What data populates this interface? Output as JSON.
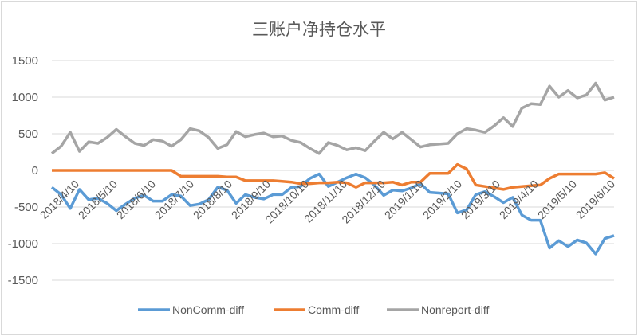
{
  "chart_data": {
    "type": "line",
    "title": "三账户净持仓水平",
    "xlabel": "",
    "ylabel": "",
    "ylim": [
      -1500,
      1500
    ],
    "yticks": [
      1500,
      1000,
      500,
      0,
      -500,
      -1000,
      -1500
    ],
    "xtick_labels": [
      "2018/4/10",
      "2018/5/10",
      "2018/6/10",
      "2018/7/10",
      "2018/8/10",
      "2018/9/10",
      "2018/10/10",
      "2018/11/10",
      "2018/12/10",
      "2019/1/10",
      "2019/2/10",
      "2019/3/10",
      "2019/4/10",
      "2019/5/10",
      "2019/6/10"
    ],
    "x_start": "2018/4/10",
    "x_frequency": "weekly",
    "grid": true,
    "legend_position": "bottom",
    "series": [
      {
        "name": "NonComm-diff",
        "color": "#5b9bd5",
        "values": [
          -230,
          -330,
          -520,
          -260,
          -400,
          -380,
          -450,
          -550,
          -460,
          -380,
          -340,
          -420,
          -420,
          -330,
          -350,
          -480,
          -460,
          -400,
          -230,
          -270,
          -450,
          -330,
          -370,
          -390,
          -330,
          -330,
          -230,
          -220,
          -110,
          -50,
          -220,
          -160,
          -100,
          -50,
          -100,
          -200,
          -340,
          -270,
          -280,
          -240,
          -180,
          -300,
          -310,
          -320,
          -580,
          -540,
          -330,
          -290,
          -360,
          -440,
          -370,
          -610,
          -680,
          -680,
          -1060,
          -960,
          -1040,
          -950,
          -990,
          -1140,
          -930,
          -890
        ]
      },
      {
        "name": "Comm-diff",
        "color": "#ed7d31",
        "values": [
          0,
          0,
          0,
          0,
          0,
          0,
          0,
          0,
          0,
          0,
          0,
          0,
          0,
          0,
          -80,
          -80,
          -80,
          -80,
          -80,
          -90,
          -90,
          -140,
          -140,
          -140,
          -140,
          -150,
          -160,
          -180,
          -180,
          -170,
          -170,
          -160,
          -170,
          -230,
          -170,
          -170,
          -170,
          -160,
          -200,
          -160,
          -160,
          -40,
          -40,
          -40,
          80,
          20,
          -200,
          -220,
          -240,
          -260,
          -230,
          -220,
          -210,
          -200,
          -110,
          -50,
          -50,
          -50,
          -50,
          -50,
          -30,
          -110
        ]
      },
      {
        "name": "Nonreport-diff",
        "color": "#a5a5a5",
        "values": [
          230,
          330,
          520,
          260,
          390,
          370,
          450,
          560,
          460,
          370,
          340,
          420,
          400,
          330,
          420,
          570,
          540,
          450,
          300,
          350,
          530,
          460,
          490,
          510,
          460,
          470,
          410,
          380,
          300,
          230,
          380,
          340,
          280,
          310,
          270,
          400,
          520,
          430,
          520,
          420,
          320,
          350,
          360,
          370,
          500,
          570,
          550,
          520,
          610,
          720,
          600,
          850,
          910,
          900,
          1150,
          1000,
          1090,
          990,
          1030,
          1190,
          960,
          1000
        ]
      }
    ]
  }
}
